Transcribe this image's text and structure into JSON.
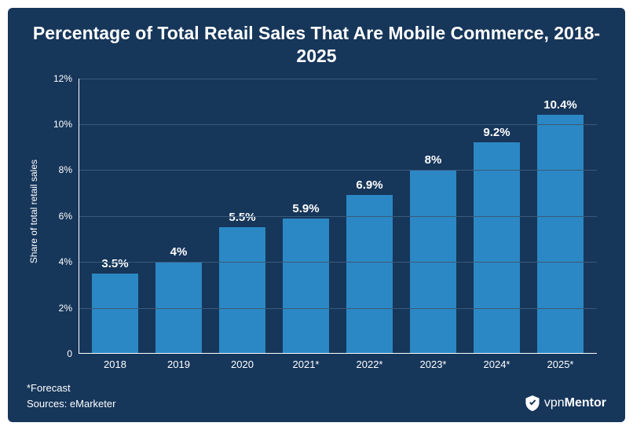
{
  "background_color": "#16365a",
  "text_color": "#ffffff",
  "title": "Percentage of Total Retail Sales That Are Mobile Commerce, 2018-2025",
  "title_fontsize": 23,
  "chart": {
    "type": "bar",
    "ylabel": "Share of total retail sales",
    "categories": [
      "2018",
      "2019",
      "2020",
      "2021*",
      "2022*",
      "2023*",
      "2024*",
      "2025*"
    ],
    "values": [
      3.5,
      4,
      5.5,
      5.9,
      6.9,
      8,
      9.2,
      10.4
    ],
    "value_labels": [
      "3.5%",
      "4%",
      "5.5%",
      "5.9%",
      "6.9%",
      "8%",
      "9.2%",
      "10.4%"
    ],
    "bar_color": "#2b88c4",
    "ylim": [
      0,
      12
    ],
    "yticks": [
      0,
      2,
      4,
      6,
      8,
      10,
      12
    ],
    "ytick_labels": [
      "0",
      "2%",
      "4%",
      "6%",
      "8%",
      "10%",
      "12%"
    ],
    "axis_color": "#ffffff",
    "grid_color": "#3a5a7a",
    "bar_width": 0.72
  },
  "footer": {
    "forecast_note": "*Forecast",
    "source_line": "Sources: eMarketer"
  },
  "brand": {
    "name_a": "vpn",
    "name_b": "Mentor",
    "shield_fill": "#ffffff",
    "check_fill": "#16365a"
  }
}
